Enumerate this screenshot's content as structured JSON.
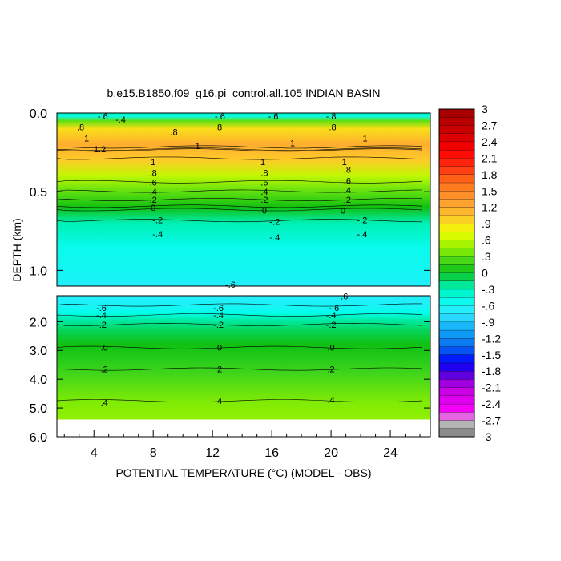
{
  "chart_data": {
    "type": "heatmap",
    "title": "b.e15.B1850.f09_g16.pi_control.all.105 INDIAN BASIN",
    "xlabel": "POTENTIAL TEMPERATURE (°C) (MODEL - OBS)",
    "ylabel": "DEPTH (km)",
    "xlim": [
      1.5,
      26.7
    ],
    "x_ticks": [
      "4",
      "8",
      "12",
      "16",
      "20",
      "24"
    ],
    "x_tick_values": [
      4,
      8,
      12,
      16,
      20,
      24
    ],
    "upper_panel": {
      "ylim": [
        0.0,
        1.1
      ],
      "y_ticks": [
        "0.0",
        "0.5",
        "1.0"
      ],
      "y_tick_values": [
        0.0,
        0.5,
        1.0
      ],
      "profile": [
        {
          "depth": 0.0,
          "value": -0.3
        },
        {
          "depth": 0.02,
          "value": -0.5
        },
        {
          "depth": 0.05,
          "value": 0.3
        },
        {
          "depth": 0.1,
          "value": 0.9
        },
        {
          "depth": 0.2,
          "value": 1.2
        },
        {
          "depth": 0.3,
          "value": 1.0
        },
        {
          "depth": 0.4,
          "value": 0.6
        },
        {
          "depth": 0.5,
          "value": 0.3
        },
        {
          "depth": 0.6,
          "value": 0.0
        },
        {
          "depth": 0.7,
          "value": -0.3
        },
        {
          "depth": 0.85,
          "value": -0.5
        },
        {
          "depth": 1.05,
          "value": -0.6
        },
        {
          "depth": 1.1,
          "value": -0.7
        }
      ],
      "contour_labels": [
        {
          "text": "-.6",
          "x": 4.6,
          "depth": 0.02
        },
        {
          "text": "-.4",
          "x": 5.8,
          "depth": 0.04
        },
        {
          "text": "-.6",
          "x": 12.5,
          "depth": 0.02
        },
        {
          "text": "-.6",
          "x": 16.1,
          "depth": 0.02
        },
        {
          "text": "-.8",
          "x": 20.0,
          "depth": 0.02
        },
        {
          "text": ".8",
          "x": 3.1,
          "depth": 0.09
        },
        {
          "text": ".8",
          "x": 9.4,
          "depth": 0.12
        },
        {
          "text": ".8",
          "x": 12.4,
          "depth": 0.09
        },
        {
          "text": ".8",
          "x": 20.1,
          "depth": 0.09
        },
        {
          "text": "1",
          "x": 3.5,
          "depth": 0.16
        },
        {
          "text": "1",
          "x": 17.4,
          "depth": 0.19
        },
        {
          "text": "1",
          "x": 11.0,
          "depth": 0.21
        },
        {
          "text": "1",
          "x": 22.3,
          "depth": 0.16
        },
        {
          "text": "1.2",
          "x": 4.4,
          "depth": 0.23
        },
        {
          "text": "1",
          "x": 8.0,
          "depth": 0.31
        },
        {
          "text": "1",
          "x": 15.4,
          "depth": 0.31
        },
        {
          "text": "1",
          "x": 20.9,
          "depth": 0.31
        },
        {
          "text": ".8",
          "x": 8.0,
          "depth": 0.38
        },
        {
          "text": ".8",
          "x": 15.5,
          "depth": 0.38
        },
        {
          "text": ".8",
          "x": 21.1,
          "depth": 0.36
        },
        {
          "text": ".6",
          "x": 8.0,
          "depth": 0.44
        },
        {
          "text": ".6",
          "x": 15.5,
          "depth": 0.44
        },
        {
          "text": ".6",
          "x": 21.1,
          "depth": 0.43
        },
        {
          "text": ".4",
          "x": 8.0,
          "depth": 0.5
        },
        {
          "text": ".4",
          "x": 15.5,
          "depth": 0.5
        },
        {
          "text": ".4",
          "x": 21.1,
          "depth": 0.49
        },
        {
          "text": ".2",
          "x": 8.0,
          "depth": 0.55
        },
        {
          "text": ".2",
          "x": 15.5,
          "depth": 0.55
        },
        {
          "text": ".2",
          "x": 21.1,
          "depth": 0.55
        },
        {
          "text": "0",
          "x": 8.0,
          "depth": 0.6
        },
        {
          "text": "0",
          "x": 15.5,
          "depth": 0.62
        },
        {
          "text": "0",
          "x": 20.8,
          "depth": 0.62
        },
        {
          "text": "-.2",
          "x": 8.3,
          "depth": 0.68
        },
        {
          "text": "-.2",
          "x": 16.2,
          "depth": 0.69
        },
        {
          "text": "-.2",
          "x": 22.1,
          "depth": 0.68
        },
        {
          "text": "-.4",
          "x": 8.3,
          "depth": 0.77
        },
        {
          "text": "-.4",
          "x": 16.2,
          "depth": 0.79
        },
        {
          "text": "-.4",
          "x": 22.1,
          "depth": 0.77
        },
        {
          "text": "-.6",
          "x": 13.2,
          "depth": 1.09
        }
      ]
    },
    "lower_panel": {
      "ylim": [
        1.1,
        6.0
      ],
      "y_ticks": [
        "2.0",
        "3.0",
        "4.0",
        "5.0",
        "6.0"
      ],
      "y_tick_values": [
        2.0,
        3.0,
        4.0,
        5.0,
        6.0
      ],
      "data_bottom_depth": 5.4,
      "profile": [
        {
          "depth": 1.1,
          "value": -0.7
        },
        {
          "depth": 1.5,
          "value": -0.6
        },
        {
          "depth": 1.7,
          "value": -0.45
        },
        {
          "depth": 1.95,
          "value": -0.25
        },
        {
          "depth": 2.3,
          "value": -0.1
        },
        {
          "depth": 2.8,
          "value": 0.0
        },
        {
          "depth": 3.3,
          "value": 0.1
        },
        {
          "depth": 3.8,
          "value": 0.2
        },
        {
          "depth": 4.3,
          "value": 0.3
        },
        {
          "depth": 4.8,
          "value": 0.4
        },
        {
          "depth": 5.4,
          "value": 0.45
        }
      ],
      "contour_labels": [
        {
          "text": "-.6",
          "x": 4.5,
          "depth": 1.52
        },
        {
          "text": "-.4",
          "x": 4.5,
          "depth": 1.77
        },
        {
          "text": "-.2",
          "x": 4.5,
          "depth": 2.1
        },
        {
          "text": ".0",
          "x": 4.7,
          "depth": 2.9
        },
        {
          "text": ".2",
          "x": 4.7,
          "depth": 3.65
        },
        {
          "text": ".4",
          "x": 4.7,
          "depth": 4.8
        },
        {
          "text": "-.6",
          "x": 12.4,
          "depth": 1.52
        },
        {
          "text": "-.4",
          "x": 12.4,
          "depth": 1.77
        },
        {
          "text": "-.2",
          "x": 12.4,
          "depth": 2.1
        },
        {
          "text": ".0",
          "x": 12.4,
          "depth": 2.9
        },
        {
          "text": ".2",
          "x": 12.4,
          "depth": 3.65
        },
        {
          "text": ".4",
          "x": 12.4,
          "depth": 4.75
        },
        {
          "text": "-.6",
          "x": 20.2,
          "depth": 1.52
        },
        {
          "text": "-.4",
          "x": 20.0,
          "depth": 1.77
        },
        {
          "text": "-.2",
          "x": 20.0,
          "depth": 2.1
        },
        {
          "text": ".0",
          "x": 20.0,
          "depth": 2.9
        },
        {
          "text": ".2",
          "x": 20.0,
          "depth": 3.65
        },
        {
          "text": ".4",
          "x": 20.0,
          "depth": 4.7
        },
        {
          "text": "-.6",
          "x": 20.8,
          "depth": 1.12
        }
      ]
    },
    "colorbar": {
      "min": -3,
      "max": 3,
      "labels": [
        "3",
        "2.7",
        "2.4",
        "2.1",
        "1.8",
        "1.5",
        "1.2",
        ".9",
        ".6",
        ".3",
        "0",
        "-.3",
        "-.6",
        "-.9",
        "-1.2",
        "-1.5",
        "-1.8",
        "-2.1",
        "-2.4",
        "-2.7",
        "-3"
      ],
      "label_values": [
        3,
        2.7,
        2.4,
        2.1,
        1.8,
        1.5,
        1.2,
        0.9,
        0.6,
        0.3,
        0,
        -0.3,
        -0.6,
        -0.9,
        -1.2,
        -1.5,
        -1.8,
        -2.1,
        -2.4,
        -2.7,
        -3
      ],
      "color_stops": [
        {
          "value": -3.0,
          "color": "#777777"
        },
        {
          "value": -2.7,
          "color": "#c8c8c8"
        },
        {
          "value": -2.55,
          "color": "#ff00ff"
        },
        {
          "value": -2.1,
          "color": "#c000e0"
        },
        {
          "value": -1.8,
          "color": "#4000e0"
        },
        {
          "value": -1.65,
          "color": "#0000ff"
        },
        {
          "value": -1.35,
          "color": "#0a6ef0"
        },
        {
          "value": -1.05,
          "color": "#10a8f8"
        },
        {
          "value": -0.75,
          "color": "#30e8ff"
        },
        {
          "value": -0.45,
          "color": "#00ffe8"
        },
        {
          "value": -0.15,
          "color": "#00e080"
        },
        {
          "value": 0.0,
          "color": "#10c010"
        },
        {
          "value": 0.15,
          "color": "#30d020"
        },
        {
          "value": 0.45,
          "color": "#90f000"
        },
        {
          "value": 0.75,
          "color": "#f0ff00"
        },
        {
          "value": 1.05,
          "color": "#ffc030"
        },
        {
          "value": 1.35,
          "color": "#ff9a30"
        },
        {
          "value": 1.65,
          "color": "#ff7018"
        },
        {
          "value": 1.95,
          "color": "#ff3010"
        },
        {
          "value": 2.25,
          "color": "#ff0000"
        },
        {
          "value": 2.55,
          "color": "#d00000"
        },
        {
          "value": 3.0,
          "color": "#a00000"
        }
      ]
    }
  }
}
